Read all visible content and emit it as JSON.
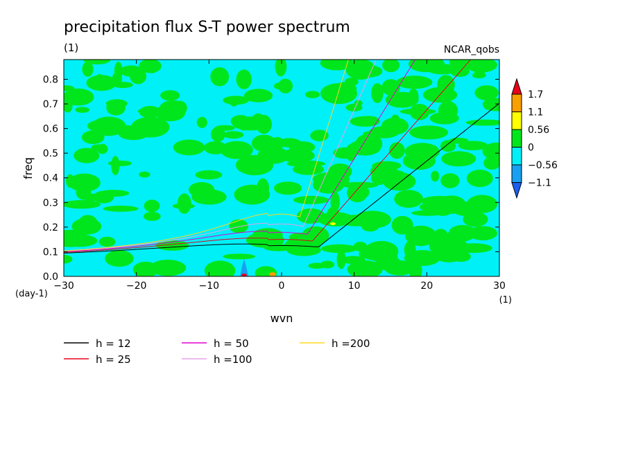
{
  "chart_data": {
    "type": "heatmap",
    "title": "precipitation flux S-T power spectrum",
    "subtitle_left": "(1)",
    "subtitle_right": "NCAR_qobs",
    "xlabel": "wvn",
    "ylabel": "freq",
    "x_unit": "(1)",
    "y_unit": "(day-1)",
    "xlim": [
      -30,
      30
    ],
    "ylim": [
      0,
      0.88
    ],
    "x_ticks": [
      -30,
      -20,
      -10,
      0,
      10,
      20,
      30
    ],
    "x_tick_labels": [
      "-30",
      "-20",
      "-10",
      "0",
      "10",
      "20",
      "30"
    ],
    "y_ticks": [
      0,
      0.1,
      0.2,
      0.3,
      0.4,
      0.5,
      0.6,
      0.7,
      0.8
    ],
    "y_tick_labels": [
      "0.0",
      "0.1",
      "0.2",
      "0.3",
      "0.4",
      "0.5",
      "0.6",
      "0.7",
      "0.8"
    ],
    "colorbar": {
      "levels": [
        "1.7",
        "1.1",
        "0.56",
        "0",
        "-0.56",
        "-1.1"
      ],
      "colors": [
        "#e8001c",
        "#f8a000",
        "#ffff00",
        "#00e61c",
        "#00f0f8",
        "#1aa0f0",
        "#1c5ff0"
      ]
    },
    "background_color": "#00f0f8",
    "blob_color": "#00e61c",
    "dispersion_curves": [
      {
        "label": "h = 12",
        "h": 12,
        "color": "#000000"
      },
      {
        "label": "h = 25",
        "h": 25,
        "color": "#e8001c"
      },
      {
        "label": "h = 50",
        "h": 50,
        "color": "#e000d0"
      },
      {
        "label": "h =100",
        "h": 100,
        "color": "#e8a0e8"
      },
      {
        "label": "h =200",
        "h": 200,
        "color": "#ffd820"
      }
    ]
  }
}
